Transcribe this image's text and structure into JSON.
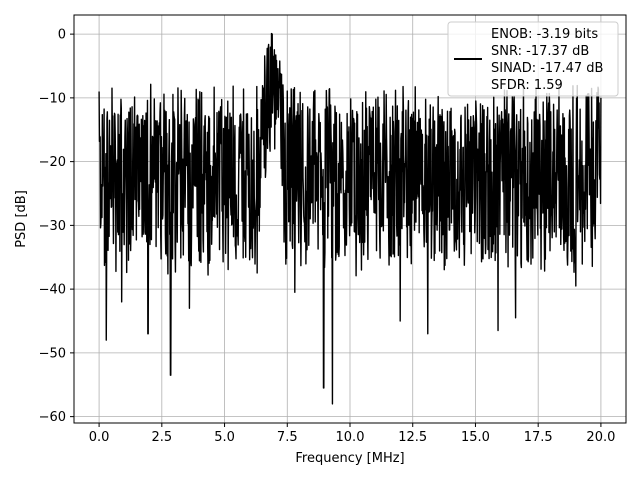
{
  "chart_data": {
    "type": "line",
    "title": "",
    "xlabel": "Frequency [MHz]",
    "ylabel": "PSD [dB]",
    "xlim": [
      -1.0,
      21.0
    ],
    "ylim": [
      -61.0,
      3.0
    ],
    "xticks": [
      0.0,
      2.5,
      5.0,
      7.5,
      10.0,
      12.5,
      15.0,
      17.5,
      20.0
    ],
    "xtick_labels": [
      "0.0",
      "2.5",
      "5.0",
      "7.5",
      "10.0",
      "12.5",
      "15.0",
      "17.5",
      "20.0"
    ],
    "yticks": [
      0,
      -10,
      -20,
      -30,
      -40,
      -50,
      -60
    ],
    "ytick_labels": [
      "0",
      "−10",
      "−20",
      "−30",
      "−40",
      "−50",
      "−60"
    ],
    "grid": true,
    "legend_position": "top-right",
    "legend_lines": [
      "ENOB: -3.19 bits",
      "SNR: -17.37 dB",
      "SINAD: -17.47 dB",
      "SFDR: 1.59"
    ],
    "series": [
      {
        "color": "#000000",
        "noise_floor_db": -22,
        "noise_range_db": [
          -38,
          -11
        ],
        "peak": {
          "x": 6.9,
          "y": 0
        },
        "endpoints": [
          {
            "x": 0.0,
            "y": -9
          },
          {
            "x": 20.0,
            "y": -10
          }
        ],
        "notable_dips": [
          {
            "x": 0.28,
            "y": -48
          },
          {
            "x": 0.9,
            "y": -42
          },
          {
            "x": 1.95,
            "y": -47
          },
          {
            "x": 2.85,
            "y": -53.5
          },
          {
            "x": 3.6,
            "y": -43
          },
          {
            "x": 7.8,
            "y": -40.5
          },
          {
            "x": 8.95,
            "y": -55.5
          },
          {
            "x": 9.3,
            "y": -58
          },
          {
            "x": 12.0,
            "y": -45
          },
          {
            "x": 13.1,
            "y": -47
          },
          {
            "x": 15.9,
            "y": -46.5
          },
          {
            "x": 16.6,
            "y": -44.5
          },
          {
            "x": 19.0,
            "y": -39.5
          }
        ]
      }
    ]
  }
}
